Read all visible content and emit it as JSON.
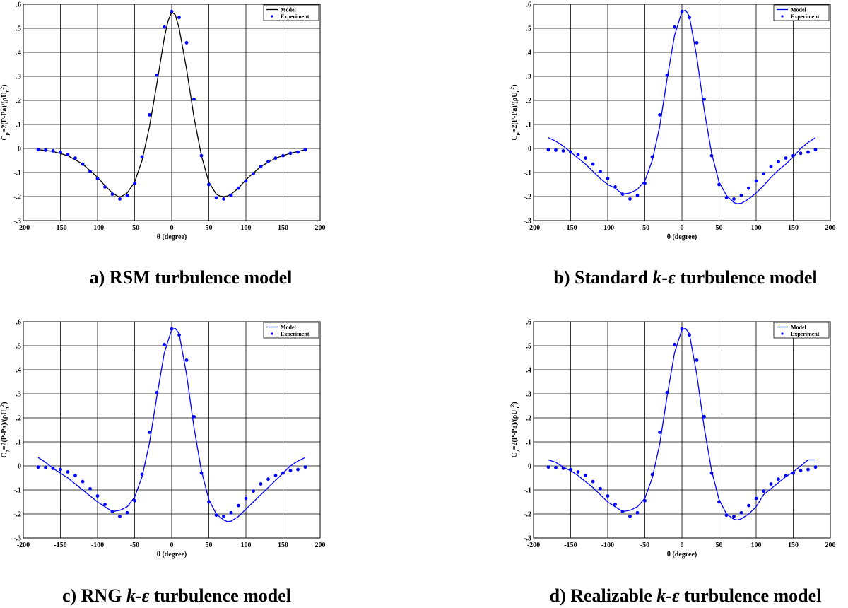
{
  "captions": [
    {
      "prefix": "a) RSM turbulence model",
      "italic": "",
      "suffix": ""
    },
    {
      "prefix": "b) Standard ",
      "italic": "k-ε",
      "suffix": " turbulence model"
    },
    {
      "prefix": "c) RNG ",
      "italic": "k-ε",
      "suffix": " turbulence model"
    },
    {
      "prefix": "d) Realizable ",
      "italic": "k-ε",
      "suffix": " turbulence model"
    }
  ],
  "axis_text": {
    "xlabel": "θ (degree)",
    "ylabel": "C_p=2(P-Pa)/(ρU_n^2)",
    "legend_model": "Model",
    "legend_experiment": "Experiment"
  },
  "colors": {
    "blue": "#0000ff",
    "black": "#000000",
    "grid": "#000000",
    "text": "#000000"
  },
  "chart_data": [
    {
      "type": "line",
      "title": "",
      "xlabel": "θ (degree)",
      "ylabel": "C_p=2(P-Pa)/(ρU_n^2)",
      "xlim": [
        -200,
        200
      ],
      "ylim": [
        -0.3,
        0.6
      ],
      "xticks": [
        -200,
        -150,
        -100,
        -50,
        0,
        50,
        100,
        150,
        200
      ],
      "yticks": [
        -0.3,
        -0.2,
        -0.1,
        0,
        0.1,
        0.2,
        0.3,
        0.4,
        0.5,
        0.6
      ],
      "grid": true,
      "legend": "top-right",
      "series": [
        {
          "name": "Model",
          "kind": "line",
          "color": "#000000",
          "x": [
            -180,
            -160,
            -140,
            -120,
            -100,
            -90,
            -80,
            -72,
            -68,
            -60,
            -50,
            -40,
            -30,
            -20,
            -10,
            -5,
            0,
            5,
            10,
            20,
            30,
            40,
            50,
            60,
            65,
            70,
            75,
            80,
            90,
            100,
            120,
            140,
            160,
            180
          ],
          "y": [
            -0.005,
            -0.012,
            -0.03,
            -0.065,
            -0.12,
            -0.155,
            -0.185,
            -0.2,
            -0.2,
            -0.185,
            -0.14,
            -0.05,
            0.09,
            0.27,
            0.46,
            0.53,
            0.568,
            0.555,
            0.5,
            0.33,
            0.13,
            -0.03,
            -0.14,
            -0.19,
            -0.198,
            -0.2,
            -0.198,
            -0.19,
            -0.165,
            -0.13,
            -0.075,
            -0.04,
            -0.02,
            -0.005
          ]
        },
        {
          "name": "Experiment",
          "kind": "points",
          "color": "#0000ff",
          "x": [
            -180,
            -170,
            -160,
            -150,
            -140,
            -130,
            -120,
            -110,
            -100,
            -90,
            -80,
            -70,
            -60,
            -50,
            -40,
            -30,
            -20,
            -10,
            0,
            10,
            20,
            30,
            40,
            50,
            60,
            70,
            80,
            90,
            100,
            110,
            120,
            130,
            140,
            150,
            160,
            170,
            180
          ],
          "y": [
            -0.005,
            -0.007,
            -0.01,
            -0.015,
            -0.025,
            -0.04,
            -0.065,
            -0.095,
            -0.125,
            -0.16,
            -0.19,
            -0.21,
            -0.195,
            -0.145,
            -0.035,
            0.14,
            0.305,
            0.505,
            0.57,
            0.545,
            0.44,
            0.205,
            -0.03,
            -0.15,
            -0.205,
            -0.21,
            -0.195,
            -0.165,
            -0.135,
            -0.105,
            -0.075,
            -0.055,
            -0.04,
            -0.03,
            -0.02,
            -0.015,
            -0.005
          ]
        }
      ]
    },
    {
      "type": "line",
      "title": "",
      "xlabel": "θ (degree)",
      "ylabel": "C_p=2(P-Pa)/(ρU_n^2)",
      "xlim": [
        -200,
        200
      ],
      "ylim": [
        -0.3,
        0.6
      ],
      "xticks": [
        -200,
        -150,
        -100,
        -50,
        0,
        50,
        100,
        150,
        200
      ],
      "yticks": [
        -0.3,
        -0.2,
        -0.1,
        0,
        0.1,
        0.2,
        0.3,
        0.4,
        0.5,
        0.6
      ],
      "grid": true,
      "legend": "top-right",
      "series": [
        {
          "name": "Model",
          "kind": "line",
          "color": "#0000ff",
          "x": [
            -180,
            -170,
            -160,
            -150,
            -140,
            -130,
            -120,
            -110,
            -100,
            -90,
            -80,
            -70,
            -60,
            -50,
            -40,
            -30,
            -20,
            -10,
            0,
            5,
            10,
            20,
            30,
            40,
            50,
            60,
            70,
            75,
            80,
            90,
            100,
            110,
            120,
            130,
            140,
            150,
            160,
            170,
            180
          ],
          "y": [
            0.045,
            0.03,
            0.01,
            -0.015,
            -0.04,
            -0.065,
            -0.095,
            -0.125,
            -0.15,
            -0.165,
            -0.19,
            -0.185,
            -0.17,
            -0.135,
            -0.05,
            0.09,
            0.29,
            0.47,
            0.57,
            0.575,
            0.55,
            0.38,
            0.16,
            -0.02,
            -0.14,
            -0.195,
            -0.225,
            -0.23,
            -0.228,
            -0.21,
            -0.185,
            -0.155,
            -0.12,
            -0.09,
            -0.065,
            -0.035,
            0.0,
            0.025,
            0.045
          ]
        },
        {
          "name": "Experiment",
          "kind": "points",
          "color": "#0000ff",
          "x": [
            -180,
            -170,
            -160,
            -150,
            -140,
            -130,
            -120,
            -110,
            -100,
            -90,
            -80,
            -70,
            -60,
            -50,
            -40,
            -30,
            -20,
            -10,
            0,
            10,
            20,
            30,
            40,
            50,
            60,
            70,
            80,
            90,
            100,
            110,
            120,
            130,
            140,
            150,
            160,
            170,
            180
          ],
          "y": [
            -0.005,
            -0.007,
            -0.01,
            -0.015,
            -0.025,
            -0.04,
            -0.065,
            -0.095,
            -0.125,
            -0.16,
            -0.19,
            -0.21,
            -0.195,
            -0.145,
            -0.035,
            0.14,
            0.305,
            0.505,
            0.57,
            0.545,
            0.44,
            0.205,
            -0.03,
            -0.15,
            -0.205,
            -0.21,
            -0.195,
            -0.165,
            -0.135,
            -0.105,
            -0.075,
            -0.055,
            -0.04,
            -0.03,
            -0.02,
            -0.015,
            -0.005
          ]
        }
      ]
    },
    {
      "type": "line",
      "title": "",
      "xlabel": "θ (degree)",
      "ylabel": "C_p=2(P-Pa)/(ρU_n^2)",
      "xlim": [
        -200,
        200
      ],
      "ylim": [
        -0.3,
        0.6
      ],
      "xticks": [
        -200,
        -150,
        -100,
        -50,
        0,
        50,
        100,
        150,
        200
      ],
      "yticks": [
        -0.3,
        -0.2,
        -0.1,
        0,
        0.1,
        0.2,
        0.3,
        0.4,
        0.5,
        0.6
      ],
      "grid": true,
      "legend": "top-right",
      "series": [
        {
          "name": "Model",
          "kind": "line",
          "color": "#0000ff",
          "x": [
            -180,
            -170,
            -160,
            -150,
            -140,
            -130,
            -120,
            -110,
            -100,
            -90,
            -80,
            -70,
            -60,
            -50,
            -40,
            -30,
            -20,
            -10,
            0,
            5,
            10,
            20,
            30,
            40,
            50,
            60,
            70,
            75,
            80,
            90,
            100,
            110,
            120,
            130,
            140,
            150,
            160,
            170,
            180
          ],
          "y": [
            0.035,
            0.015,
            -0.01,
            -0.03,
            -0.05,
            -0.075,
            -0.1,
            -0.125,
            -0.15,
            -0.17,
            -0.19,
            -0.185,
            -0.17,
            -0.13,
            -0.045,
            0.095,
            0.29,
            0.47,
            0.568,
            0.572,
            0.55,
            0.38,
            0.16,
            -0.02,
            -0.14,
            -0.2,
            -0.225,
            -0.232,
            -0.23,
            -0.21,
            -0.18,
            -0.15,
            -0.12,
            -0.09,
            -0.06,
            -0.03,
            0.0,
            0.02,
            0.035
          ]
        },
        {
          "name": "Experiment",
          "kind": "points",
          "color": "#0000ff",
          "x": [
            -180,
            -170,
            -160,
            -150,
            -140,
            -130,
            -120,
            -110,
            -100,
            -90,
            -80,
            -70,
            -60,
            -50,
            -40,
            -30,
            -20,
            -10,
            0,
            10,
            20,
            30,
            40,
            50,
            60,
            70,
            80,
            90,
            100,
            110,
            120,
            130,
            140,
            150,
            160,
            170,
            180
          ],
          "y": [
            -0.005,
            -0.007,
            -0.01,
            -0.015,
            -0.025,
            -0.04,
            -0.065,
            -0.095,
            -0.125,
            -0.16,
            -0.19,
            -0.21,
            -0.195,
            -0.145,
            -0.035,
            0.14,
            0.305,
            0.505,
            0.57,
            0.545,
            0.44,
            0.205,
            -0.03,
            -0.15,
            -0.205,
            -0.21,
            -0.195,
            -0.165,
            -0.135,
            -0.105,
            -0.075,
            -0.055,
            -0.04,
            -0.03,
            -0.02,
            -0.015,
            -0.005
          ]
        }
      ]
    },
    {
      "type": "line",
      "title": "",
      "xlabel": "θ (degree)",
      "ylabel": "C_p=2(P-Pa)/(ρU_n^2)",
      "xlim": [
        -200,
        200
      ],
      "ylim": [
        -0.3,
        0.6
      ],
      "xticks": [
        -200,
        -150,
        -100,
        -50,
        0,
        50,
        100,
        150,
        200
      ],
      "yticks": [
        -0.3,
        -0.2,
        -0.1,
        0,
        0.1,
        0.2,
        0.3,
        0.4,
        0.5,
        0.6
      ],
      "grid": true,
      "legend": "top-right",
      "series": [
        {
          "name": "Model",
          "kind": "line",
          "color": "#0000ff",
          "x": [
            -180,
            -170,
            -160,
            -150,
            -140,
            -130,
            -120,
            -110,
            -100,
            -90,
            -80,
            -70,
            -60,
            -50,
            -40,
            -30,
            -20,
            -10,
            0,
            5,
            10,
            20,
            30,
            40,
            50,
            60,
            70,
            75,
            80,
            90,
            100,
            110,
            120,
            130,
            140,
            150,
            160,
            170,
            180
          ],
          "y": [
            0.025,
            0.015,
            -0.005,
            -0.02,
            -0.04,
            -0.065,
            -0.09,
            -0.12,
            -0.15,
            -0.17,
            -0.19,
            -0.185,
            -0.17,
            -0.135,
            -0.05,
            0.09,
            0.29,
            0.47,
            0.568,
            0.572,
            0.55,
            0.38,
            0.16,
            -0.02,
            -0.14,
            -0.2,
            -0.222,
            -0.225,
            -0.22,
            -0.2,
            -0.17,
            -0.12,
            -0.095,
            -0.07,
            -0.045,
            -0.025,
            0.0,
            0.025,
            0.025
          ]
        },
        {
          "name": "Experiment",
          "kind": "points",
          "color": "#0000ff",
          "x": [
            -180,
            -170,
            -160,
            -150,
            -140,
            -130,
            -120,
            -110,
            -100,
            -90,
            -80,
            -70,
            -60,
            -50,
            -40,
            -30,
            -20,
            -10,
            0,
            10,
            20,
            30,
            40,
            50,
            60,
            70,
            80,
            90,
            100,
            110,
            120,
            130,
            140,
            150,
            160,
            170,
            180
          ],
          "y": [
            -0.005,
            -0.007,
            -0.01,
            -0.015,
            -0.025,
            -0.04,
            -0.065,
            -0.095,
            -0.125,
            -0.16,
            -0.19,
            -0.21,
            -0.195,
            -0.145,
            -0.035,
            0.14,
            0.305,
            0.505,
            0.57,
            0.545,
            0.44,
            0.205,
            -0.03,
            -0.15,
            -0.205,
            -0.21,
            -0.195,
            -0.165,
            -0.135,
            -0.105,
            -0.075,
            -0.055,
            -0.04,
            -0.03,
            -0.02,
            -0.015,
            -0.005
          ]
        }
      ]
    }
  ]
}
